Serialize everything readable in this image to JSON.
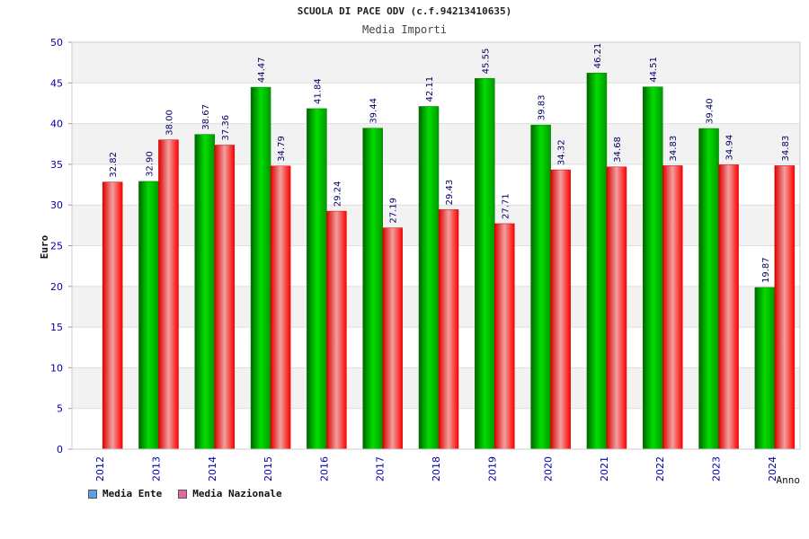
{
  "title": "SCUOLA DI PACE ODV (c.f.94213410635)",
  "subtitle": "Media Importi",
  "chart_data": {
    "type": "bar",
    "categories": [
      "2012",
      "2013",
      "2014",
      "2015",
      "2016",
      "2017",
      "2018",
      "2019",
      "2020",
      "2021",
      "2022",
      "2023",
      "2024"
    ],
    "series": [
      {
        "name": "Media Ente",
        "values": [
          null,
          32.9,
          38.67,
          44.47,
          41.84,
          39.44,
          42.11,
          45.55,
          39.83,
          46.21,
          44.51,
          39.4,
          19.87
        ],
        "color": "#00b000",
        "legend_color": "#5aa0e6"
      },
      {
        "name": "Media Nazionale",
        "values": [
          32.82,
          38.0,
          37.36,
          34.79,
          29.24,
          27.19,
          29.43,
          27.71,
          34.32,
          34.68,
          34.83,
          34.94,
          34.83
        ],
        "color": "#ee1111",
        "legend_color": "#e06aa0"
      }
    ],
    "ylabel": "Euro",
    "xlabel": "Anno",
    "ylim": [
      0,
      50
    ],
    "yticks": [
      0,
      5,
      10,
      15,
      20,
      25,
      30,
      35,
      40,
      45,
      50
    ],
    "grid": true,
    "legend_position": "bottom-left"
  }
}
